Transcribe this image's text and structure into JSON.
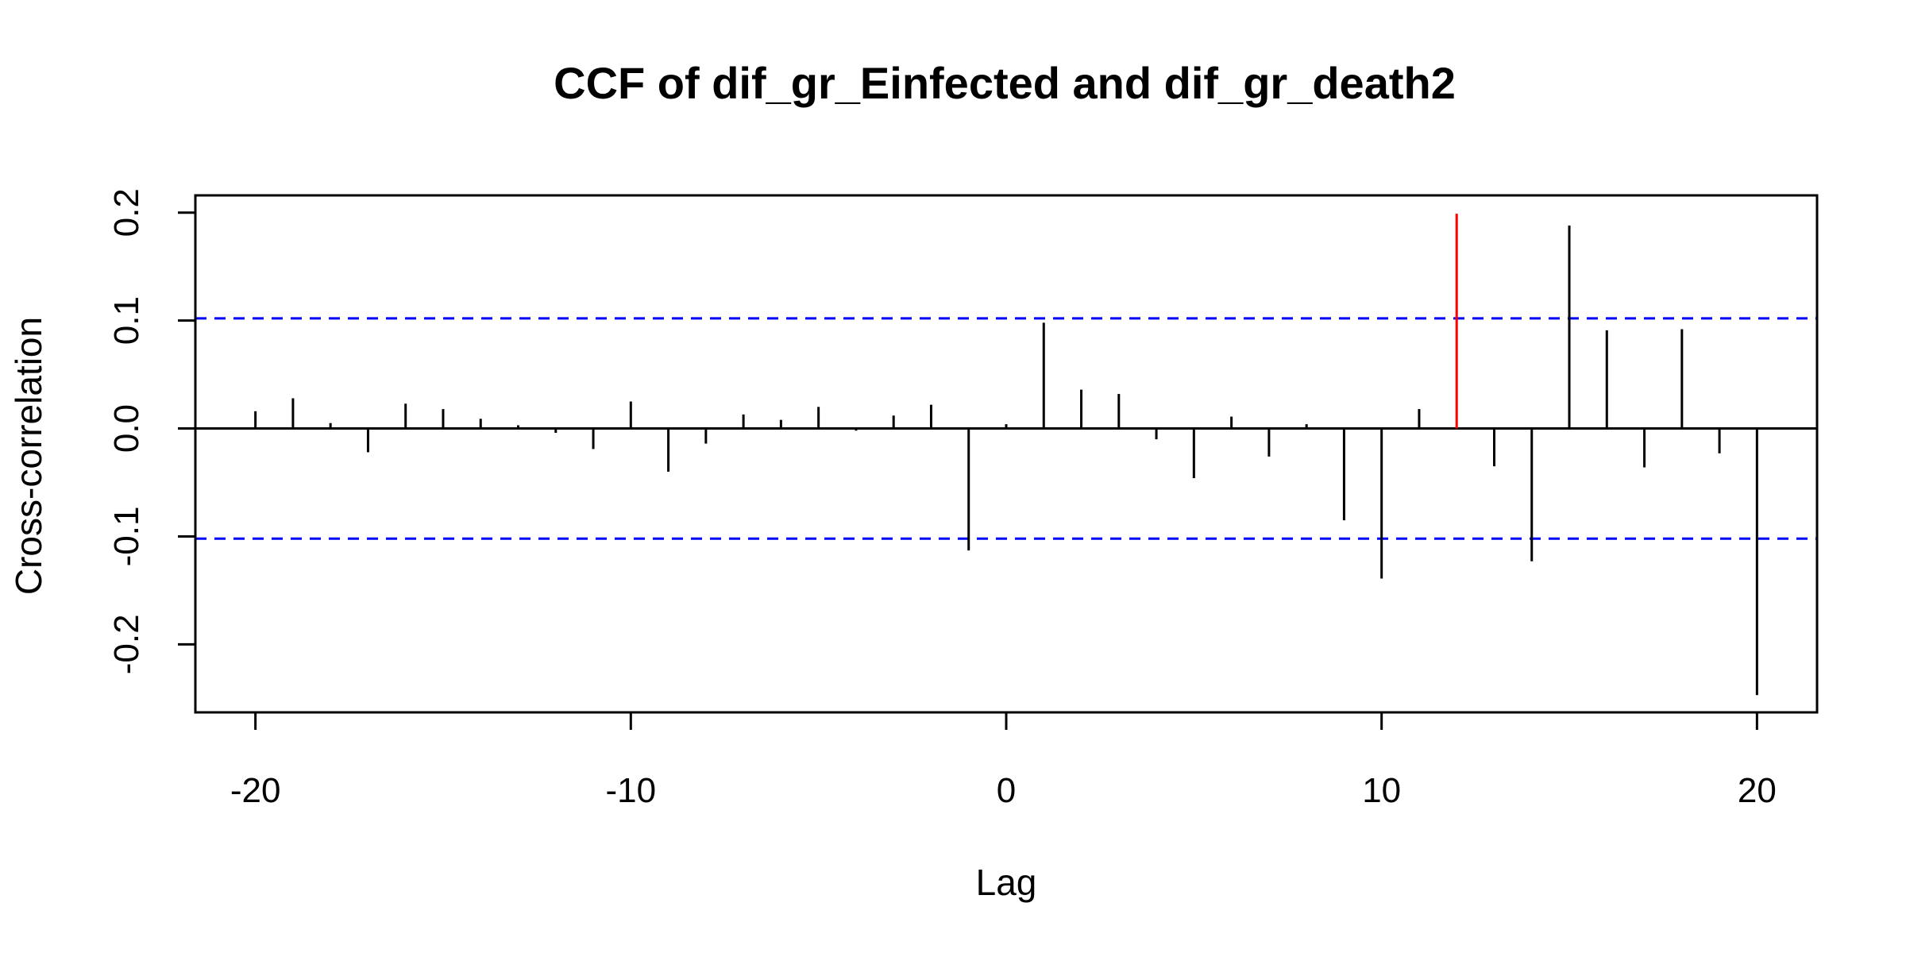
{
  "chart_data": {
    "type": "bar",
    "title": "CCF of dif_gr_Einfected and dif_gr_death2",
    "xlabel": "Lag",
    "ylabel": "Cross-correlation",
    "xlim": [
      -21.6,
      21.6
    ],
    "ylim": [
      -0.263,
      0.216
    ],
    "x_ticks": [
      -20,
      -10,
      0,
      10,
      20
    ],
    "x_tick_labels": [
      "-20",
      "-10",
      "0",
      "10",
      "20"
    ],
    "y_ticks": [
      -0.2,
      -0.1,
      0.0,
      0.1,
      0.2
    ],
    "y_tick_labels": [
      "-0.2",
      "-0.1",
      "0.0",
      "0.1",
      "0.2"
    ],
    "confidence_bound": 0.102,
    "highlight_lag": 12,
    "colors": {
      "bars": "#000000",
      "highlight": "#ff0000",
      "confidence_lines": "#0000ff",
      "zero_line": "#000000"
    },
    "lags": [
      -20,
      -19,
      -18,
      -17,
      -16,
      -15,
      -14,
      -13,
      -12,
      -11,
      -10,
      -9,
      -8,
      -7,
      -6,
      -5,
      -4,
      -3,
      -2,
      -1,
      0,
      1,
      2,
      3,
      4,
      5,
      6,
      7,
      8,
      9,
      10,
      11,
      12,
      13,
      14,
      15,
      16,
      17,
      18,
      19,
      20
    ],
    "values": [
      0.016,
      0.028,
      0.005,
      -0.022,
      0.023,
      0.018,
      0.009,
      0.003,
      -0.004,
      -0.019,
      0.025,
      -0.04,
      -0.014,
      0.013,
      0.008,
      0.02,
      -0.002,
      0.012,
      0.022,
      -0.113,
      0.004,
      0.098,
      0.036,
      0.032,
      -0.01,
      -0.046,
      0.011,
      -0.026,
      0.004,
      -0.085,
      -0.139,
      0.018,
      0.199,
      -0.035,
      -0.123,
      0.188,
      0.091,
      -0.036,
      0.092,
      -0.023,
      -0.247
    ]
  }
}
